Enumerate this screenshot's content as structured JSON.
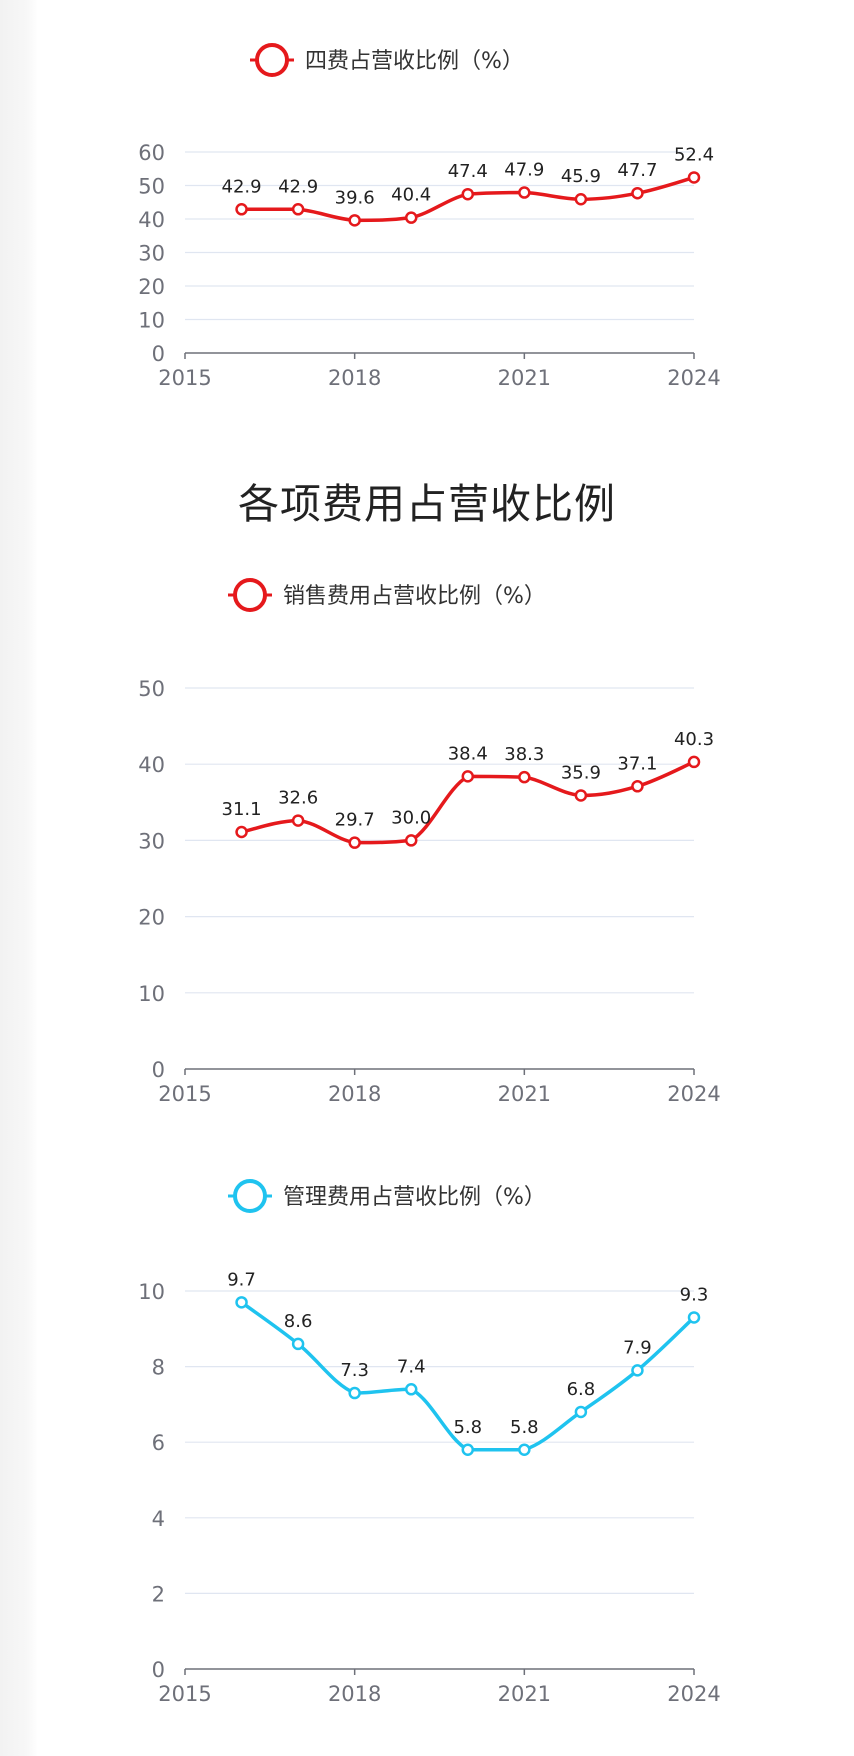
{
  "section_title": "各项费用占营收比例",
  "chart_data": [
    {
      "type": "line",
      "legend": "四费占营收比例（%）",
      "color": "#e5191c",
      "x": [
        2016,
        2017,
        2018,
        2019,
        2020,
        2021,
        2022,
        2023,
        2024
      ],
      "values": [
        42.9,
        42.9,
        39.6,
        40.4,
        47.4,
        47.9,
        45.9,
        47.7,
        52.4
      ],
      "data_labels": [
        "42.9",
        "42.9",
        "39.6",
        "40.4",
        "47.4",
        "47.9",
        "45.9",
        "47.7",
        "52.4"
      ],
      "xlim": [
        2015,
        2024
      ],
      "x_ticks": [
        "2015",
        "2018",
        "2021",
        "2024"
      ],
      "ylim": [
        0,
        60
      ],
      "y_ticks": [
        "0",
        "10",
        "20",
        "30",
        "40",
        "50",
        "60"
      ],
      "grid": true,
      "legend_position": "top"
    },
    {
      "type": "line",
      "legend": "销售费用占营收比例（%）",
      "color": "#e5191c",
      "x": [
        2016,
        2017,
        2018,
        2019,
        2020,
        2021,
        2022,
        2023,
        2024
      ],
      "values": [
        31.1,
        32.6,
        29.7,
        30.0,
        38.4,
        38.3,
        35.9,
        37.1,
        40.3
      ],
      "data_labels": [
        "31.1",
        "32.6",
        "29.7",
        "30.0",
        "38.4",
        "38.3",
        "35.9",
        "37.1",
        "40.3"
      ],
      "xlim": [
        2015,
        2024
      ],
      "x_ticks": [
        "2015",
        "2018",
        "2021",
        "2024"
      ],
      "ylim": [
        0,
        50
      ],
      "y_ticks": [
        "0",
        "10",
        "20",
        "30",
        "40",
        "50"
      ],
      "grid": true,
      "legend_position": "top"
    },
    {
      "type": "line",
      "legend": "管理费用占营收比例（%）",
      "color": "#1fc3ef",
      "x": [
        2016,
        2017,
        2018,
        2019,
        2020,
        2021,
        2022,
        2023,
        2024
      ],
      "values": [
        9.7,
        8.6,
        7.3,
        7.4,
        5.8,
        5.8,
        6.8,
        7.9,
        9.3
      ],
      "data_labels": [
        "9.7",
        "8.6",
        "7.3",
        "7.4",
        "5.8",
        "5.8",
        "6.8",
        "7.9",
        "9.3"
      ],
      "xlim": [
        2015,
        2024
      ],
      "x_ticks": [
        "2015",
        "2018",
        "2021",
        "2024"
      ],
      "ylim": [
        0,
        10
      ],
      "y_ticks": [
        "0",
        "2",
        "4",
        "6",
        "8",
        "10"
      ],
      "grid": true,
      "legend_position": "top"
    }
  ]
}
